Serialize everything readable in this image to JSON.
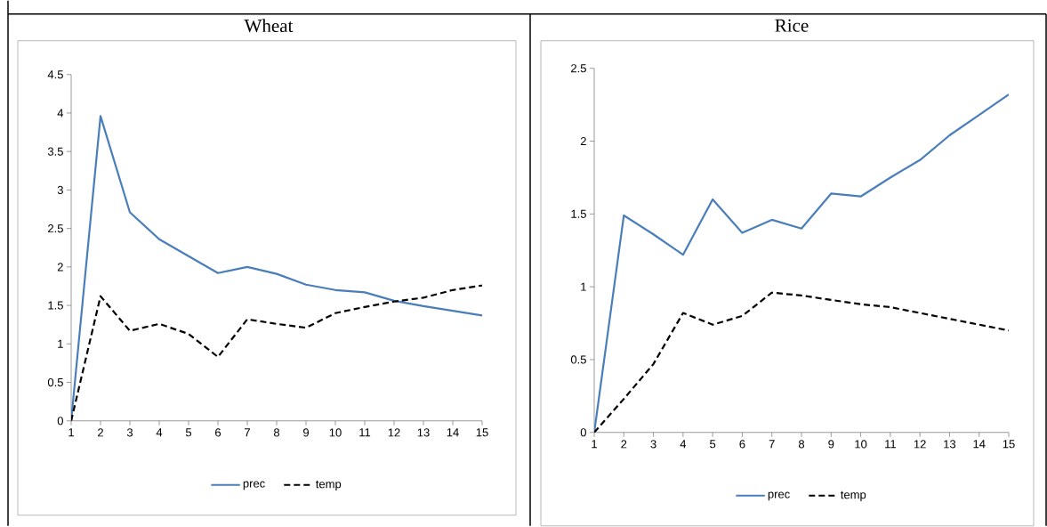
{
  "chart_data": [
    {
      "type": "line",
      "title": "Wheat",
      "x": [
        1,
        2,
        3,
        4,
        5,
        6,
        7,
        8,
        9,
        10,
        11,
        12,
        13,
        14,
        15
      ],
      "xlim": [
        1,
        15
      ],
      "xticks": [
        1,
        2,
        3,
        4,
        5,
        6,
        7,
        8,
        9,
        10,
        11,
        12,
        13,
        14,
        15
      ],
      "ylim": [
        0,
        4.5
      ],
      "yticks": [
        0,
        0.5,
        1,
        1.5,
        2,
        2.5,
        3,
        3.5,
        4,
        4.5
      ],
      "grid": false,
      "legend": "bottom",
      "marker": "none",
      "series": [
        {
          "name": "prec",
          "color": "#4a7ebb",
          "line_style": "solid",
          "values": [
            0,
            3.96,
            2.71,
            2.36,
            2.14,
            1.92,
            2.0,
            1.91,
            1.77,
            1.7,
            1.67,
            1.56,
            1.49,
            1.43,
            1.37
          ]
        },
        {
          "name": "temp",
          "color": "#000000",
          "line_style": "dashed",
          "values": [
            0,
            1.62,
            1.17,
            1.26,
            1.13,
            0.83,
            1.32,
            1.26,
            1.21,
            1.4,
            1.48,
            1.55,
            1.6,
            1.7,
            1.76
          ]
        }
      ]
    },
    {
      "type": "line",
      "title": "Rice",
      "x": [
        1,
        2,
        3,
        4,
        5,
        6,
        7,
        8,
        9,
        10,
        11,
        12,
        13,
        14,
        15
      ],
      "xlim": [
        1,
        15
      ],
      "xticks": [
        1,
        2,
        3,
        4,
        5,
        6,
        7,
        8,
        9,
        10,
        11,
        12,
        13,
        14,
        15
      ],
      "ylim": [
        0,
        2.5
      ],
      "yticks": [
        0,
        0.5,
        1,
        1.5,
        2,
        2.5
      ],
      "grid": false,
      "legend": "bottom",
      "marker": "none",
      "series": [
        {
          "name": "prec",
          "color": "#4a7ebb",
          "line_style": "solid",
          "values": [
            0,
            1.49,
            1.36,
            1.22,
            1.6,
            1.37,
            1.46,
            1.4,
            1.64,
            1.62,
            1.75,
            1.87,
            2.04,
            2.18,
            2.32
          ]
        },
        {
          "name": "temp",
          "color": "#000000",
          "line_style": "dashed",
          "values": [
            0,
            0.23,
            0.47,
            0.82,
            0.74,
            0.8,
            0.96,
            0.94,
            0.91,
            0.88,
            0.86,
            0.82,
            0.78,
            0.74,
            0.7
          ]
        }
      ]
    }
  ]
}
